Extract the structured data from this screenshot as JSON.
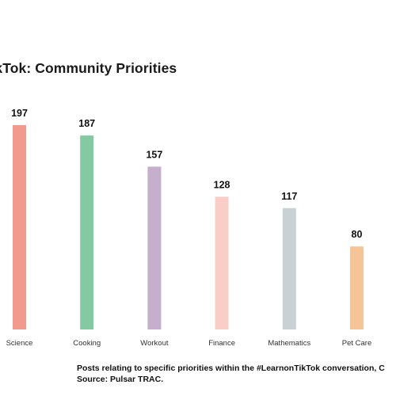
{
  "chart_data": {
    "type": "bar",
    "title": "TikTok: Community Priorities",
    "categories": [
      "Science",
      "Cooking",
      "Workout",
      "Finance",
      "Mathematics",
      "Pet Care"
    ],
    "values": [
      197,
      187,
      157,
      128,
      117,
      80
    ],
    "colors": [
      "#f29a8e",
      "#85c9a3",
      "#c6afcc",
      "#f8cec7",
      "#c9d1d4",
      "#f5c597"
    ],
    "ylim": [
      0,
      197
    ],
    "xlabel": "",
    "ylabel": "",
    "grid": false,
    "legend": "none"
  },
  "caption": {
    "line1": "Posts relating to specific priorities within the #LearnonTikTok conversation, C",
    "line2": "Source: Pulsar TRAC."
  }
}
